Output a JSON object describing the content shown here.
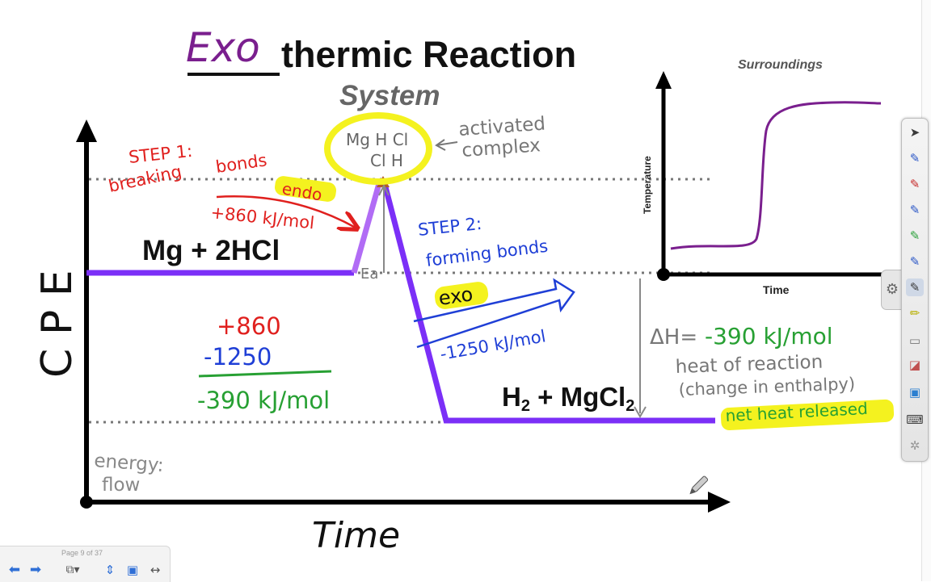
{
  "title": {
    "prefix_handwritten": "Exo",
    "rest": "thermic Reaction"
  },
  "system_label": "System",
  "surroundings_label": "Surroundings",
  "y_axis_label": "C P E",
  "x_axis_label": "Time",
  "reactants": "Mg + 2HCl",
  "products": {
    "h": "H",
    "sub1": "2",
    "mid": " + MgCl",
    "sub2": "2"
  },
  "activated_complex": {
    "row1": "Mg H Cl",
    "row2": "Cl H",
    "label_line1": "activated",
    "label_line2": "complex"
  },
  "step1": {
    "line1": "STEP 1:",
    "line2a": "breaking",
    "line2b": "bonds",
    "tag": "endo",
    "value": "+860 kJ/mol"
  },
  "step2": {
    "line1": "STEP 2:",
    "line2": "forming bonds",
    "tag": "exo",
    "value": "-1250 kJ/mol"
  },
  "activation_energy_label": "Ea",
  "calculation": {
    "line1": "+860",
    "line2": "-1250",
    "result": "-390 kJ/mol"
  },
  "delta_h": {
    "symbol": "ΔH=",
    "value": "-390 kJ/mol",
    "desc1": "heat of reaction",
    "desc2": "(change in enthalpy)",
    "note": "net heat released"
  },
  "energy_flow": {
    "line1": "energy:",
    "line2": "flow"
  },
  "graph2": {
    "ylabel": "Temperature",
    "xlabel": "Time"
  },
  "navigation": {
    "page_indicator": "Page 9 of 37"
  },
  "colors": {
    "purple": "#7b2ff7",
    "purple_light": "#b16cf5",
    "red": "#e0201e",
    "green": "#27a033",
    "blue": "#1f3fd6",
    "yellow": "#f4f21f",
    "gray": "#8a8a8a"
  },
  "icons": [
    "pointer-icon",
    "pen-icon",
    "pen-icon",
    "pen-icon",
    "pen-icon",
    "pen-icon",
    "pen-icon",
    "highlighter-icon",
    "eraser-icon",
    "eraser-icon",
    "text-icon",
    "keyboard-icon",
    "settings-icon"
  ]
}
